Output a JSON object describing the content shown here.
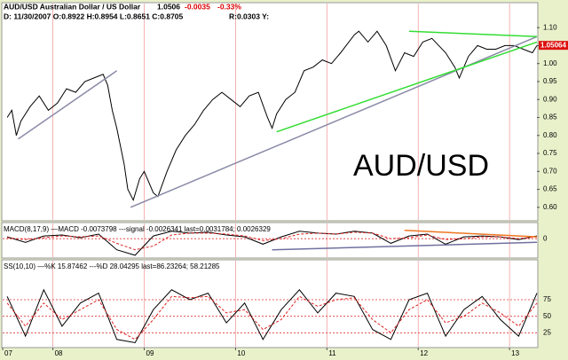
{
  "header": {
    "title": "AUD/USD Australian Dollar / US Dollar",
    "last": "1.0506",
    "change": "-0.0035",
    "change_pct": "-0.33%",
    "ohlc": "D: 11/30/2007 O:0.8922 H:0.8954 L:0.8651 C:0.8705",
    "range": "R:0.0303 Y:"
  },
  "chart_data": [
    {
      "type": "line",
      "annotation": "AUD/USD",
      "last_price": 1.05064,
      "xlim": [
        2007.45,
        2013.3
      ],
      "ylim": [
        0.565,
        1.167
      ],
      "yticks": [
        {
          "value": 0.6,
          "label": "0.60"
        },
        {
          "value": 0.65,
          "label": "0.65"
        },
        {
          "value": 0.7,
          "label": "0.70"
        },
        {
          "value": 0.75,
          "label": "0.75"
        },
        {
          "value": 0.8,
          "label": "0.80"
        },
        {
          "value": 0.85,
          "label": "0.85"
        },
        {
          "value": 0.9,
          "label": "0.90"
        },
        {
          "value": 0.95,
          "label": "0.95"
        },
        {
          "value": 1.0,
          "label": "1.00"
        },
        {
          "value": 1.05,
          "label": "1.05"
        },
        {
          "value": 1.1,
          "label": "1.10"
        }
      ],
      "x": [
        2007.5,
        2007.55,
        2007.6,
        2007.65,
        2007.75,
        2007.85,
        2007.95,
        2008.05,
        2008.15,
        2008.25,
        2008.35,
        2008.45,
        2008.55,
        2008.6,
        2008.65,
        2008.7,
        2008.78,
        2008.82,
        2008.88,
        2008.95,
        2009.0,
        2009.1,
        2009.15,
        2009.25,
        2009.35,
        2009.45,
        2009.55,
        2009.65,
        2009.75,
        2009.85,
        2009.95,
        2010.05,
        2010.15,
        2010.25,
        2010.35,
        2010.4,
        2010.45,
        2010.55,
        2010.65,
        2010.75,
        2010.85,
        2010.95,
        2011.05,
        2011.15,
        2011.3,
        2011.35,
        2011.45,
        2011.55,
        2011.65,
        2011.75,
        2011.85,
        2011.95,
        2012.05,
        2012.15,
        2012.3,
        2012.4,
        2012.45,
        2012.55,
        2012.65,
        2012.75,
        2012.85,
        2012.95,
        2013.05,
        2013.15,
        2013.25,
        2013.3
      ],
      "series": [
        {
          "color": "#000000",
          "values": [
            0.85,
            0.87,
            0.8,
            0.84,
            0.88,
            0.91,
            0.87,
            0.89,
            0.93,
            0.92,
            0.95,
            0.96,
            0.97,
            0.94,
            0.87,
            0.82,
            0.72,
            0.65,
            0.62,
            0.68,
            0.7,
            0.64,
            0.63,
            0.7,
            0.76,
            0.8,
            0.83,
            0.87,
            0.9,
            0.92,
            0.9,
            0.88,
            0.91,
            0.92,
            0.85,
            0.82,
            0.86,
            0.9,
            0.92,
            0.98,
            0.99,
            1.01,
            1.0,
            1.03,
            1.08,
            1.09,
            1.06,
            1.09,
            1.05,
            0.98,
            1.03,
            1.02,
            1.06,
            1.07,
            1.03,
            0.99,
            0.96,
            1.02,
            1.05,
            1.04,
            1.04,
            1.05,
            1.05,
            1.04,
            1.03,
            1.05
          ]
        }
      ],
      "trendlines": [
        {
          "color": "#8a8aa8",
          "x": [
            2007.62,
            2008.7
          ],
          "y": [
            0.79,
            0.98
          ]
        },
        {
          "color": "#8a8aa8",
          "x": [
            2008.85,
            2013.3
          ],
          "y": [
            0.6,
            1.075
          ]
        },
        {
          "color": "#33dd33",
          "x": [
            2010.45,
            2013.3
          ],
          "y": [
            0.81,
            1.06
          ]
        },
        {
          "color": "#33dd33",
          "x": [
            2011.9,
            2013.3
          ],
          "y": [
            1.09,
            1.075
          ]
        }
      ]
    },
    {
      "type": "line",
      "label": "MACD(8,17,9) —MACD -0.0073798 ---signal -0.0026341 last=0.0031784; 0.0026329",
      "xlim": [
        2007.45,
        2013.3
      ],
      "ylim": [
        -0.02,
        0.0165
      ],
      "yticks": [
        0
      ],
      "x": [
        2007.5,
        2007.7,
        2007.9,
        2008.1,
        2008.3,
        2008.5,
        2008.7,
        2008.9,
        2009.1,
        2009.3,
        2009.5,
        2009.7,
        2009.9,
        2010.1,
        2010.3,
        2010.5,
        2010.7,
        2010.9,
        2011.1,
        2011.3,
        2011.5,
        2011.7,
        2011.9,
        2012.1,
        2012.3,
        2012.5,
        2012.7,
        2012.9,
        2013.1,
        2013.3
      ],
      "series": [
        {
          "name": "MACD",
          "color": "#000000",
          "values": [
            0.002,
            -0.004,
            0.003,
            0.004,
            0.001,
            0.005,
            -0.012,
            -0.018,
            0.003,
            0.008,
            0.006,
            0.007,
            0.004,
            0.002,
            -0.006,
            0.002,
            0.008,
            0.006,
            0.005,
            0.008,
            0.006,
            -0.005,
            0.003,
            0.005,
            -0.006,
            0.002,
            0.003,
            0.002,
            -0.001,
            0.003
          ]
        },
        {
          "name": "signal",
          "color": "#dd2222",
          "values": [
            0.001,
            -0.001,
            0.001,
            0.003,
            0.002,
            0.003,
            -0.005,
            -0.012,
            -0.008,
            0.004,
            0.006,
            0.006,
            0.005,
            0.003,
            -0.002,
            0.0,
            0.005,
            0.006,
            0.005,
            0.007,
            0.006,
            0.0,
            0.001,
            0.004,
            -0.001,
            0.0,
            0.002,
            0.002,
            0.0,
            0.002
          ]
        }
      ],
      "trendlines": [
        {
          "color": "#ee7722",
          "x": [
            2011.85,
            2013.3
          ],
          "y": [
            0.009,
            0.002
          ]
        },
        {
          "color": "#7070a0",
          "x": [
            2010.4,
            2013.3
          ],
          "y": [
            -0.012,
            -0.004
          ]
        }
      ]
    },
    {
      "type": "line",
      "label": "SS(10,10) —%K 15.87462 ---%D 28.04295 last=86.23264; 58.21285",
      "xlim": [
        2007.45,
        2013.3
      ],
      "ylim": [
        4,
        134
      ],
      "yticks": [
        25,
        50,
        75
      ],
      "xticks": [
        {
          "value": 2007.45,
          "label": "07"
        },
        {
          "value": 2008,
          "label": "08"
        },
        {
          "value": 2009,
          "label": "09"
        },
        {
          "value": 2010,
          "label": "10"
        },
        {
          "value": 2011,
          "label": "11"
        },
        {
          "value": 2012,
          "label": "12"
        },
        {
          "value": 2013,
          "label": "13"
        }
      ],
      "x": [
        2007.5,
        2007.7,
        2007.9,
        2008.1,
        2008.3,
        2008.5,
        2008.7,
        2008.9,
        2009.1,
        2009.3,
        2009.5,
        2009.7,
        2009.9,
        2010.1,
        2010.3,
        2010.5,
        2010.7,
        2010.9,
        2011.1,
        2011.3,
        2011.5,
        2011.7,
        2011.9,
        2012.1,
        2012.3,
        2012.5,
        2012.7,
        2012.9,
        2013.1,
        2013.3
      ],
      "series": [
        {
          "name": "%K",
          "color": "#000000",
          "values": [
            80,
            20,
            90,
            35,
            70,
            85,
            15,
            10,
            60,
            90,
            75,
            85,
            40,
            70,
            15,
            60,
            90,
            55,
            85,
            80,
            30,
            15,
            75,
            85,
            20,
            60,
            80,
            45,
            20,
            85
          ]
        },
        {
          "name": "%D",
          "color": "#dd2222",
          "values": [
            70,
            35,
            70,
            45,
            60,
            75,
            30,
            15,
            45,
            80,
            78,
            80,
            55,
            60,
            30,
            45,
            80,
            65,
            75,
            78,
            45,
            25,
            60,
            75,
            40,
            50,
            70,
            55,
            35,
            70
          ]
        }
      ]
    }
  ]
}
